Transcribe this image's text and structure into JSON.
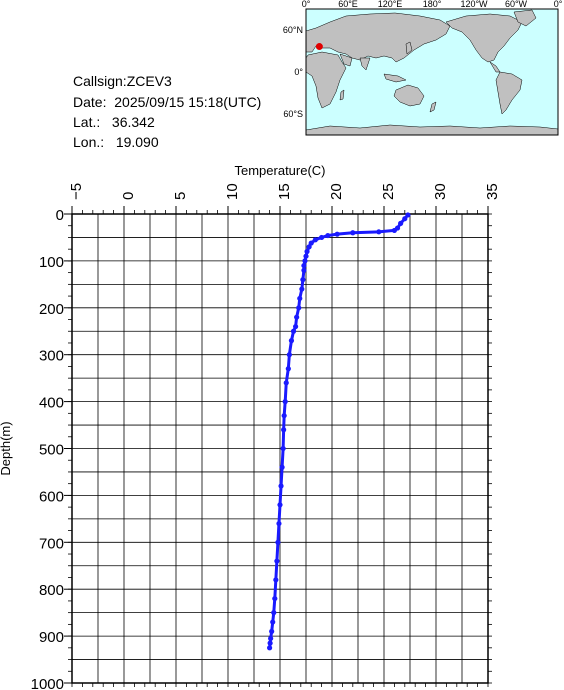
{
  "info": {
    "callsign_label": "Callsign:",
    "callsign": "ZCEV3",
    "date_label": "Date:",
    "date": "2025/09/15 15:18(UTC)",
    "lat_label": "Lat.:",
    "lat": "36.342",
    "lon_label": "Lon.:",
    "lon": "19.090"
  },
  "map": {
    "lon_labels": [
      "0°",
      "60°E",
      "120°E",
      "180°",
      "120°W",
      "60°W",
      "0°"
    ],
    "lat_labels": [
      "60°N",
      "0°",
      "60°S"
    ],
    "marker": {
      "lon": 19.09,
      "lat": 36.342,
      "color": "#e00000"
    },
    "colors": {
      "ocean": "#ccffff",
      "land": "#c0c0c0"
    }
  },
  "chart_data": {
    "type": "line",
    "xlabel": "Temperature(C)",
    "ylabel": "Depth(m)",
    "xlim": [
      -5,
      35
    ],
    "ylim": [
      1000,
      0
    ],
    "x_ticks": [
      -5,
      0,
      5,
      10,
      15,
      20,
      25,
      30,
      35
    ],
    "y_ticks": [
      0,
      100,
      200,
      300,
      400,
      500,
      600,
      700,
      800,
      900,
      1000
    ],
    "grid": true,
    "color": "#1a1aff",
    "series": [
      {
        "x": [
          27.3,
          27.0,
          26.6,
          26.3,
          26.0,
          24.5,
          22.0,
          20.5,
          19.6,
          19.0,
          18.4,
          18.0,
          17.8,
          17.6,
          17.5,
          17.4,
          17.3,
          17.3,
          17.2,
          17.1,
          16.9,
          16.8,
          16.6,
          16.5,
          16.3,
          16.1,
          15.9,
          15.8,
          15.6,
          15.5,
          15.4,
          15.35,
          15.3,
          15.2,
          15.1,
          15.0,
          14.9,
          14.8,
          14.7,
          14.6,
          14.5,
          14.4,
          14.3,
          14.2,
          14.1,
          14.05,
          14.0
        ],
        "y": [
          2,
          10,
          20,
          30,
          35,
          38,
          40,
          43,
          46,
          50,
          55,
          62,
          70,
          80,
          90,
          100,
          110,
          120,
          140,
          160,
          180,
          200,
          220,
          240,
          250,
          270,
          300,
          330,
          360,
          400,
          430,
          460,
          500,
          540,
          580,
          620,
          660,
          700,
          740,
          780,
          820,
          850,
          870,
          890,
          905,
          915,
          925
        ]
      }
    ]
  }
}
